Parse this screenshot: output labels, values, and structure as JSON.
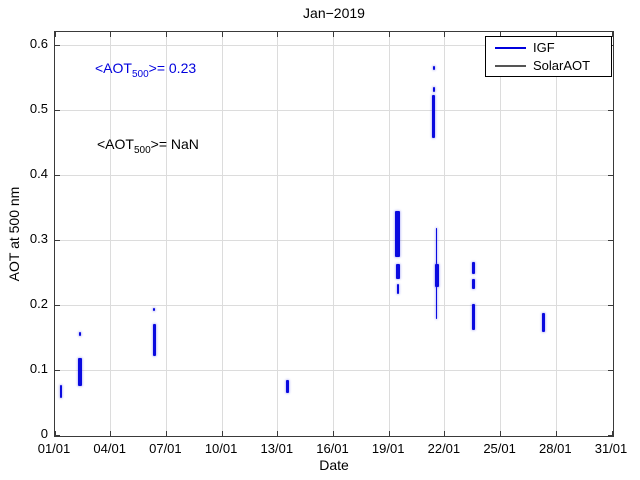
{
  "chart_data": {
    "type": "scatter",
    "title": "Jan−2019",
    "xlabel": "Date",
    "ylabel": "AOT at 500 nm",
    "xlim_days": [
      1,
      31
    ],
    "ylim": [
      0,
      0.62
    ],
    "grid": true,
    "xticks": [
      {
        "day": 1,
        "label": "01/01"
      },
      {
        "day": 4,
        "label": "04/01"
      },
      {
        "day": 7,
        "label": "07/01"
      },
      {
        "day": 10,
        "label": "10/01"
      },
      {
        "day": 13,
        "label": "13/01"
      },
      {
        "day": 16,
        "label": "16/01"
      },
      {
        "day": 19,
        "label": "19/01"
      },
      {
        "day": 22,
        "label": "22/01"
      },
      {
        "day": 25,
        "label": "25/01"
      },
      {
        "day": 28,
        "label": "28/01"
      },
      {
        "day": 31,
        "label": "31/01"
      }
    ],
    "yticks": [
      {
        "value": 0,
        "label": "0"
      },
      {
        "value": 0.1,
        "label": "0.1"
      },
      {
        "value": 0.2,
        "label": "0.2"
      },
      {
        "value": 0.3,
        "label": "0.3"
      },
      {
        "value": 0.4,
        "label": "0.4"
      },
      {
        "value": 0.5,
        "label": "0.5"
      },
      {
        "value": 0.6,
        "label": "0.6"
      }
    ],
    "legend_position": "top-right",
    "legend": [
      {
        "label": "IGF",
        "color": "#0000dd"
      },
      {
        "label": "SolarAOT",
        "color": "#555555"
      }
    ],
    "annotations": [
      {
        "name": "mean-aot-igf",
        "text_prefix": "<AOT",
        "sub": "500",
        "text_suffix": ">= 0.23",
        "value": "0.23",
        "color": "#0000dd"
      },
      {
        "name": "mean-aot-solaraot",
        "text_prefix": "<AOT",
        "sub": "500",
        "text_suffix": ">=  NaN",
        "value": "NaN",
        "color": "#000000"
      }
    ],
    "series": [
      {
        "name": "IGF",
        "color": "#0a0adf",
        "halo_color": "rgba(80,80,240,0.45)",
        "clusters": [
          {
            "day": 1.32,
            "ymin": 0.057,
            "ymax": 0.077,
            "w": 2
          },
          {
            "day": 2.35,
            "ymin": 0.075,
            "ymax": 0.118,
            "w": 4
          },
          {
            "day": 2.33,
            "ymin": 0.152,
            "ymax": 0.158,
            "w": 2
          },
          {
            "day": 6.38,
            "ymin": 0.122,
            "ymax": 0.171,
            "w": 3
          },
          {
            "day": 6.33,
            "ymin": 0.191,
            "ymax": 0.196,
            "w": 2
          },
          {
            "day": 13.5,
            "ymin": 0.064,
            "ymax": 0.084,
            "w": 3
          },
          {
            "day": 19.45,
            "ymin": 0.274,
            "ymax": 0.345,
            "w": 5
          },
          {
            "day": 19.5,
            "ymin": 0.24,
            "ymax": 0.263,
            "w": 4
          },
          {
            "day": 19.5,
            "ymin": 0.217,
            "ymax": 0.233,
            "w": 2
          },
          {
            "day": 21.4,
            "ymin": 0.562,
            "ymax": 0.568,
            "w": 2
          },
          {
            "day": 21.4,
            "ymin": 0.528,
            "ymax": 0.535,
            "w": 2
          },
          {
            "day": 21.4,
            "ymin": 0.457,
            "ymax": 0.523,
            "w": 3
          },
          {
            "day": 21.55,
            "ymin": 0.179,
            "ymax": 0.319,
            "w": 1.5
          },
          {
            "day": 21.55,
            "ymin": 0.228,
            "ymax": 0.263,
            "w": 4
          },
          {
            "day": 23.55,
            "ymin": 0.248,
            "ymax": 0.266,
            "w": 2.5
          },
          {
            "day": 23.55,
            "ymin": 0.225,
            "ymax": 0.24,
            "w": 2.5
          },
          {
            "day": 23.55,
            "ymin": 0.161,
            "ymax": 0.202,
            "w": 3
          },
          {
            "day": 27.3,
            "ymin": 0.159,
            "ymax": 0.187,
            "w": 3.5
          }
        ]
      },
      {
        "name": "SolarAOT",
        "color": "#555555",
        "halo_color": "rgba(120,120,120,0.4)",
        "clusters": []
      }
    ]
  },
  "colors": {
    "grid": "#dcdcdc",
    "axis": "#3a3a3a",
    "background": "#ffffff"
  }
}
